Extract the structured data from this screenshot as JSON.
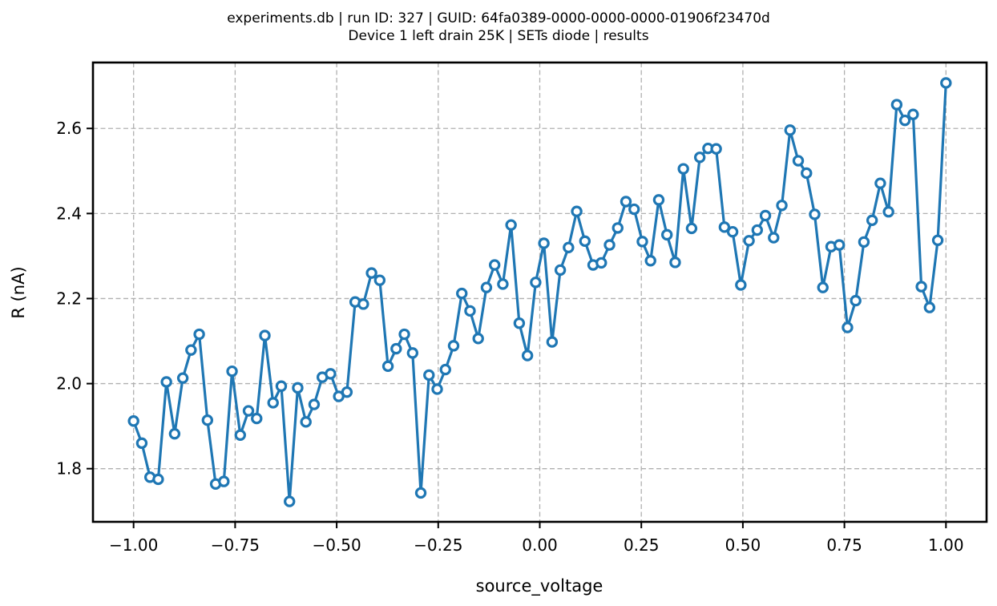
{
  "chart_data": {
    "type": "line",
    "title_lines": [
      "experiments.db | run ID: 327 | GUID: 64fa0389-0000-0000-0000-01906f23470d",
      "Device 1 left drain 25K | SETs diode | results"
    ],
    "xlabel": "source_voltage",
    "ylabel": "R (nA)",
    "xlim": [
      -1.1,
      1.1
    ],
    "ylim": [
      1.675,
      2.755
    ],
    "xticks": [
      -1.0,
      -0.75,
      -0.5,
      -0.25,
      0.0,
      0.25,
      0.5,
      0.75,
      1.0
    ],
    "xtick_labels": [
      "−1.00",
      "−0.75",
      "−0.50",
      "−0.25",
      "0.00",
      "0.25",
      "0.50",
      "0.75",
      "1.00"
    ],
    "yticks": [
      1.8,
      2.0,
      2.2,
      2.4,
      2.6
    ],
    "ytick_labels": [
      "1.8",
      "2.0",
      "2.2",
      "2.4",
      "2.6"
    ],
    "grid": true,
    "line_color": "#1f77b4",
    "marker_fill": "#ffffff",
    "x_start": -1.0,
    "x_end": 1.0,
    "series": [
      {
        "y": [
          1.912,
          1.86,
          1.78,
          1.775,
          2.004,
          1.882,
          2.013,
          2.079,
          2.116,
          1.914,
          1.764,
          1.77,
          2.029,
          1.879,
          1.936,
          1.918,
          2.113,
          1.955,
          1.994,
          1.723,
          1.99,
          1.91,
          1.951,
          2.015,
          2.023,
          1.97,
          1.98,
          2.192,
          2.187,
          2.26,
          2.243,
          2.041,
          2.082,
          2.116,
          2.072,
          1.743,
          2.02,
          1.987,
          2.033,
          2.089,
          2.212,
          2.171,
          2.106,
          2.226,
          2.279,
          2.234,
          2.373,
          2.142,
          2.066,
          2.238,
          2.33,
          2.098,
          2.267,
          2.32,
          2.405,
          2.335,
          2.279,
          2.284,
          2.326,
          2.366,
          2.428,
          2.41,
          2.334,
          2.289,
          2.432,
          2.35,
          2.285,
          2.505,
          2.365,
          2.532,
          2.553,
          2.552,
          2.368,
          2.357,
          2.232,
          2.336,
          2.361,
          2.395,
          2.343,
          2.419,
          2.596,
          2.524,
          2.495,
          2.398,
          2.226,
          2.322,
          2.326,
          2.132,
          2.195,
          2.333,
          2.384,
          2.471,
          2.404,
          2.656,
          2.619,
          2.633,
          2.228,
          2.179,
          2.337,
          2.707
        ]
      }
    ]
  }
}
